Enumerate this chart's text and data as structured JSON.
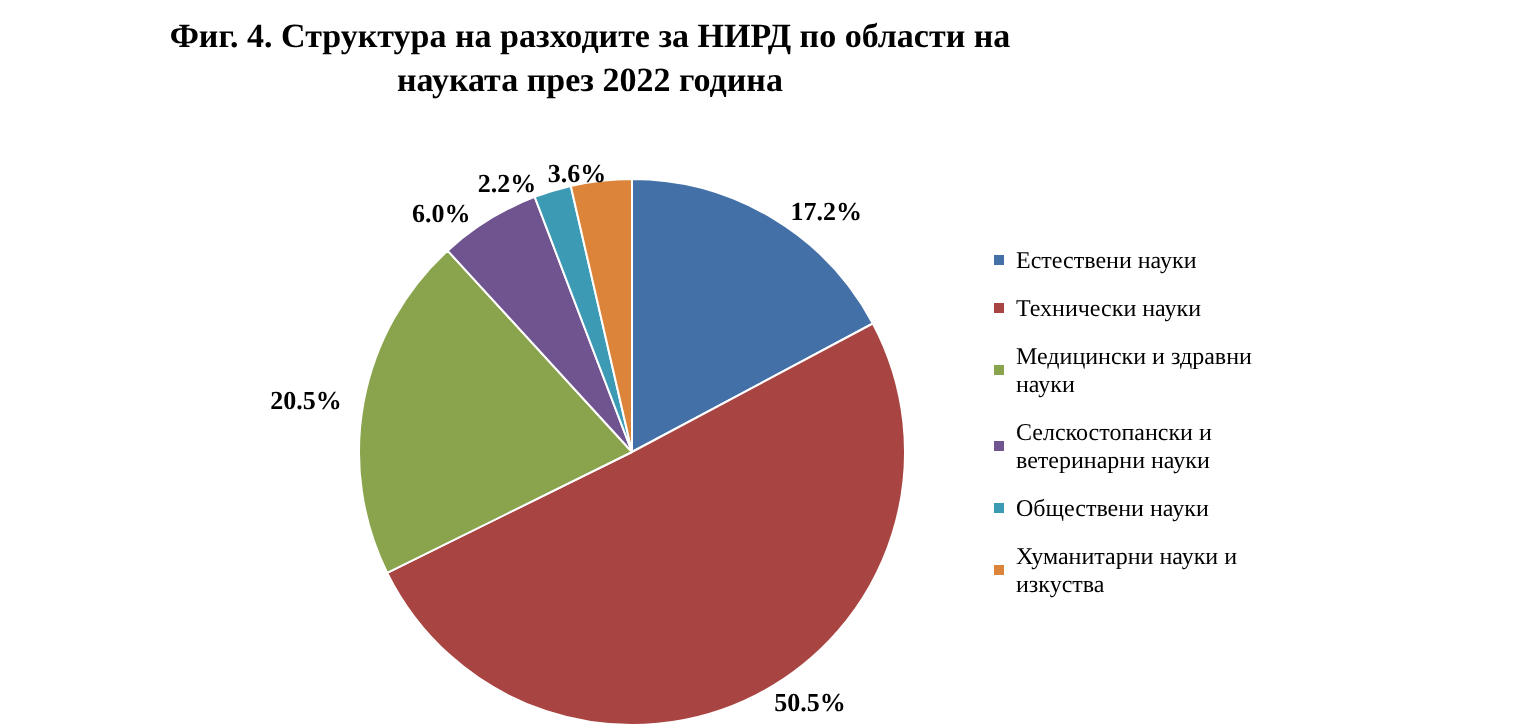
{
  "chart_data": {
    "type": "pie",
    "title": "Фиг. 4. Структура на разходите за НИРД по области на\nнауката през 2022 година",
    "categories": [
      "Естествени науки",
      "Технически науки",
      "Медицински и здравни науки",
      "Селскостопански и ветеринарни науки",
      "Обществени науки",
      "Хуманитарни науки и изкуства"
    ],
    "values": [
      17.2,
      50.5,
      20.5,
      6.0,
      2.2,
      3.6
    ],
    "value_labels": [
      "17.2%",
      "50.5%",
      "20.5%",
      "6.0%",
      "2.2%",
      "3.6%"
    ],
    "colors": [
      "#4470a8",
      "#a84542",
      "#8aa44e",
      "#6f5490",
      "#3d9ab4",
      "#dc8439"
    ],
    "legend": "right"
  }
}
